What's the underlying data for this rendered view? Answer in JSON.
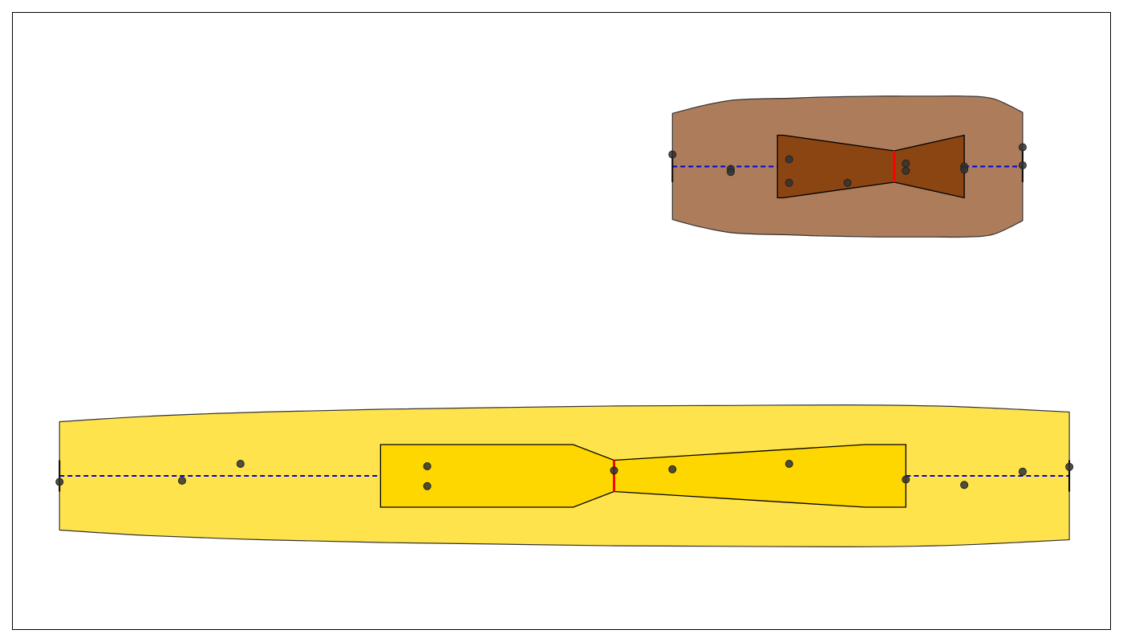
{
  "chart_data": {
    "type": "violin-box",
    "orientation": "horizontal",
    "title": "",
    "xlabel": "",
    "ylabel": "",
    "grid": false,
    "legend": false,
    "xlim": [
      -0.3,
      18.5
    ],
    "colors": {
      "median": "#ff0000",
      "whisker": "#0000dd",
      "edge": "#000000",
      "point": "#333333"
    },
    "series": [
      {
        "violin_color": "#ffe34d",
        "box_color": "#ffd700",
        "min": 0.5,
        "q1": 6.0,
        "median": 10.0,
        "q3": 15.0,
        "max": 17.8,
        "notch_low": 9.3,
        "notch_high": 14.3,
        "points": [
          {
            "x": 0.5,
            "j": -0.1
          },
          {
            "x": 2.6,
            "j": -0.08
          },
          {
            "x": 3.6,
            "j": 0.2
          },
          {
            "x": 6.8,
            "j": 0.16
          },
          {
            "x": 6.8,
            "j": -0.17
          },
          {
            "x": 10.0,
            "j": 0.09
          },
          {
            "x": 11.0,
            "j": 0.11
          },
          {
            "x": 13.0,
            "j": 0.2
          },
          {
            "x": 15.0,
            "j": -0.06
          },
          {
            "x": 16.0,
            "j": -0.15
          },
          {
            "x": 17.0,
            "j": 0.07
          },
          {
            "x": 17.8,
            "j": 0.15
          }
        ],
        "density": [
          {
            "x": 0.5,
            "h": 1.0
          },
          {
            "x": 2.0,
            "h": 1.1
          },
          {
            "x": 4.0,
            "h": 1.18
          },
          {
            "x": 6.0,
            "h": 1.23
          },
          {
            "x": 8.0,
            "h": 1.26
          },
          {
            "x": 10.0,
            "h": 1.29
          },
          {
            "x": 12.0,
            "h": 1.3
          },
          {
            "x": 14.0,
            "h": 1.31
          },
          {
            "x": 15.5,
            "h": 1.29
          },
          {
            "x": 16.5,
            "h": 1.25
          },
          {
            "x": 17.8,
            "h": 1.18
          }
        ]
      },
      {
        "violin_color": "#ad7d5b",
        "box_color": "#8b4513",
        "min": 11.0,
        "q1": 12.8,
        "median": 14.8,
        "q3": 16.0,
        "max": 17.0,
        "notch_low": 12.9,
        "notch_high": 16.0,
        "points": [
          {
            "x": 11.0,
            "j": 0.2
          },
          {
            "x": 12.0,
            "j": -0.04
          },
          {
            "x": 12.0,
            "j": -0.09
          },
          {
            "x": 13.0,
            "j": 0.12
          },
          {
            "x": 13.0,
            "j": -0.27
          },
          {
            "x": 14.0,
            "j": -0.27
          },
          {
            "x": 15.0,
            "j": 0.05
          },
          {
            "x": 15.0,
            "j": -0.07
          },
          {
            "x": 16.0,
            "j": 0.0
          },
          {
            "x": 16.0,
            "j": -0.05
          },
          {
            "x": 17.0,
            "j": 0.32
          },
          {
            "x": 17.0,
            "j": 0.02
          }
        ],
        "density": [
          {
            "x": 11.0,
            "h": 0.98
          },
          {
            "x": 11.5,
            "h": 1.12
          },
          {
            "x": 12.0,
            "h": 1.22
          },
          {
            "x": 12.5,
            "h": 1.25
          },
          {
            "x": 13.0,
            "h": 1.26
          },
          {
            "x": 13.5,
            "h": 1.28
          },
          {
            "x": 14.0,
            "h": 1.29
          },
          {
            "x": 14.5,
            "h": 1.3
          },
          {
            "x": 15.0,
            "h": 1.3
          },
          {
            "x": 15.5,
            "h": 1.3
          },
          {
            "x": 16.0,
            "h": 1.3
          },
          {
            "x": 16.5,
            "h": 1.25
          },
          {
            "x": 17.0,
            "h": 1.0
          }
        ]
      }
    ]
  }
}
